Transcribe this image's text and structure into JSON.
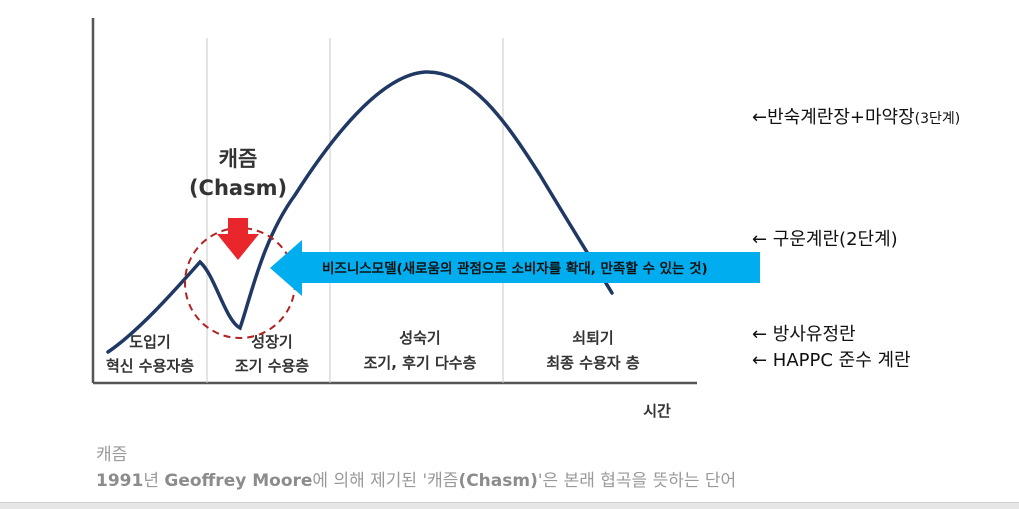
{
  "diagram": {
    "chasm_label_ko": "캐즘",
    "chasm_label_en": "(Chasm)",
    "arrow_text": "비즈니스모델(새로움의 관점으로 소비자를 확대, 만족할 수 있는 것)",
    "x_axis_label": "시간",
    "stages": [
      {
        "line1": "도입기",
        "line2": "혁신 수용자층"
      },
      {
        "line1": "성장기",
        "line2": "조기 수용층"
      },
      {
        "line1": "성숙기",
        "line2": "조기, 후기 다수층"
      },
      {
        "line1": "쇠퇴기",
        "line2": "최종  수용자 층"
      }
    ],
    "colors": {
      "curve": "#1f3864",
      "arrow": "#00aeef",
      "down_arrow": "#e8262b",
      "circle": "#b22222"
    }
  },
  "side_labels": {
    "label1_main": "←반숙계란장+마약장",
    "label1_small": "(3단계)",
    "label2": "← 구운계란(2단계)",
    "label3": "← 방사유정란",
    "label4": "← HAPPC 준수  계란"
  },
  "caption": {
    "title": "캐즘",
    "year_bold": "1991",
    "text1": "년 ",
    "author_bold": "Geoffrey Moore",
    "text2": "에 의해 제기된 '캐즘",
    "chasm_bold": "(Chasm)",
    "text3": "'은 본래 협곡을 뜻하는 단어"
  }
}
